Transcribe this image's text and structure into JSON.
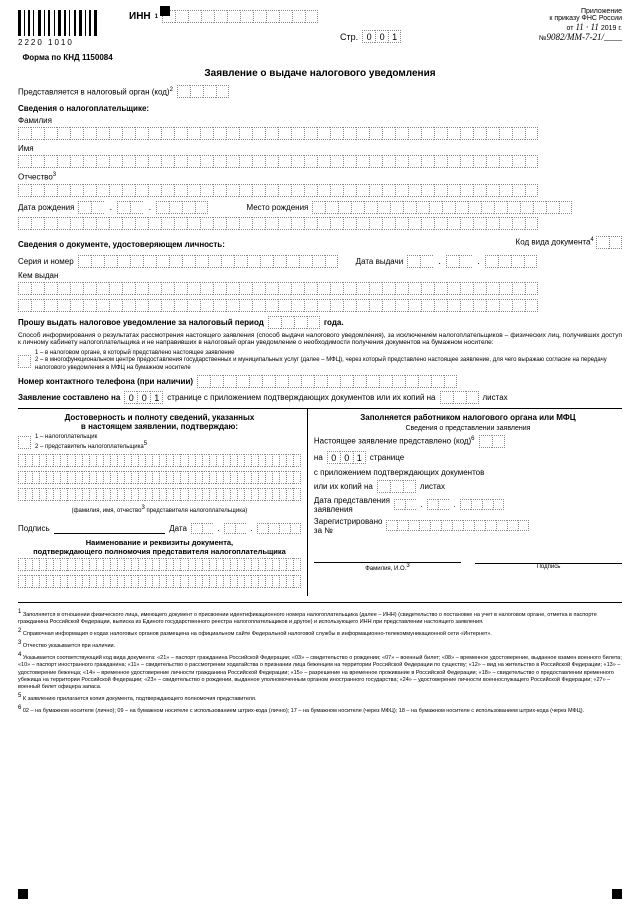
{
  "header": {
    "barcode_nums": "2220    1010",
    "inn_label": "ИНН",
    "app_line1": "Приложение",
    "app_line2": "к приказу ФНС России",
    "app_from": "от",
    "app_date_hw": "11 · 11",
    "app_year": "2019 г.",
    "app_no": "№",
    "app_no_hw": "9082/ММ-7-21/____",
    "str_label": "Стр.",
    "str_val": [
      "0",
      "0",
      "1"
    ],
    "form_code": "Форма по КНД 1150084",
    "title": "Заявление о выдаче налогового уведомления"
  },
  "body": {
    "present_label": "Представляется в налоговый орган (код)",
    "taxpayer_h": "Сведения о налогоплательщике:",
    "lastname": "Фамилия",
    "firstname": "Имя",
    "patronymic": "Отчество",
    "dob": "Дата рождения",
    "pob": "Место рождения",
    "doc_h": "Сведения о документе, удостоверяющем личность:",
    "doc_code": "Код вида документа",
    "series": "Серия и номер",
    "issue_date": "Дата выдачи",
    "issued_by": "Кем выдан",
    "request": "Прошу выдать налоговое уведомление за налоговый период",
    "year_word": "года.",
    "info_text1": "Способ информирования о результатах рассмотрения настоящего заявления (способ выдачи налогового уведомления), за исключением налогоплательщиков – физических лиц, получивших доступ к личному кабинету налогоплательщика и не направивших в налоговый орган уведомление о необходимости получения документов на бумажном носителе:",
    "opt1": "1 – в налоговом органе, в который представлено настоящее заявление",
    "opt2": "2 – в многофункциональном центре предоставления государственных и муниципальных услуг (далее – МФЦ), через который представлено настоящее заявление, для чего выражаю согласие на передачу налогового уведомления в МФЦ на бумажном носителе",
    "phone": "Номер контактного телефона (при наличии)",
    "composed": "Заявление составлено на",
    "composed_val": [
      "0",
      "0",
      "1"
    ],
    "composed_mid": "странице с приложением подтверждающих документов или их копий на",
    "sheets": "листах"
  },
  "left": {
    "h1": "Достоверность и полноту сведений, указанных",
    "h2": "в настоящем заявлении, подтверждаю:",
    "o1": "1 – налогоплательщик",
    "o2": "2 – представитель налогоплательщика",
    "fio_hint": "(фамилия, имя, отчество",
    "fio_hint2": "представителя налогоплательщика)",
    "sign": "Подпись",
    "date": "Дата",
    "doc_h1": "Наименование и реквизиты документа,",
    "doc_h2": "подтверждающего полномочия представителя налогоплательщика"
  },
  "right": {
    "h": "Заполняется работником налогового органа или МФЦ",
    "sub": "Сведения о представлении заявления",
    "present": "Настоящее заявление представлено (код)",
    "on": "на",
    "on_val": [
      "0",
      "0",
      "1"
    ],
    "page_word": "странице",
    "attach": "с приложением подтверждающих документов",
    "copies": "или их копий на",
    "sheets": "листах",
    "date_present1": "Дата представления",
    "date_present2": "заявления",
    "reg1": "Зарегистрировано",
    "reg2": "за №",
    "fio": "Фамилия, И.О.",
    "sign": "Подпись"
  },
  "footnotes": {
    "f1": "Заполняется в отношении физического лица, имеющего документ о присвоении идентификационного номера налогоплательщика (далее – ИНН) (свидетельство о постановке на учет в налоговом органе, отметка в паспорте гражданина Российской Федерации, выписка из Единого государственного реестра налогоплательщиков и другое) и использующего ИНН при представлении настоящего заявления.",
    "f2": "Справочная информация о кодах налоговых органов размещена на официальном сайте Федеральной налоговой службы в информационно-телекоммуникационной сети «Интернет».",
    "f3": "Отчество указывается при наличии.",
    "f4": "Указывается соответствующий код вида документа: «21» – паспорт гражданина Российской Федерации; «03» – свидетельство о рождении; «07» – военный билет; «08» – временное удостоверение, выданное взамен военного билета; «10» – паспорт иностранного гражданина; «11» – свидетельство о рассмотрении ходатайства о признании лица беженцем на территории Российской Федерации по существу; «12» – вид на жительство в Российской Федерации; «13» – удостоверение беженца; «14» – временное удостоверение личности гражданина Российской Федерации; «15» – разрешение на временное проживание в Российской Федерации; «18» – свидетельство о предоставлении временного убежища на территории Российской Федерации; «23» – свидетельство о рождении, выданное уполномоченным органом иностранного государства; «24» – удостоверение личности военнослужащего Российской Федерации; «27» – военный билет офицера запаса.",
    "f5": "К заявлению прилагается копия документа, подтверждающего полномочия представителя.",
    "f6": "02 – на бумажном носителе (лично); 09 – на бумажном носителе с использованием штрих-кода (лично); 17 – на бумажном носителе (через МФЦ); 18 – на бумажном носителе с использованием штрих-кода (через МФЦ)."
  }
}
